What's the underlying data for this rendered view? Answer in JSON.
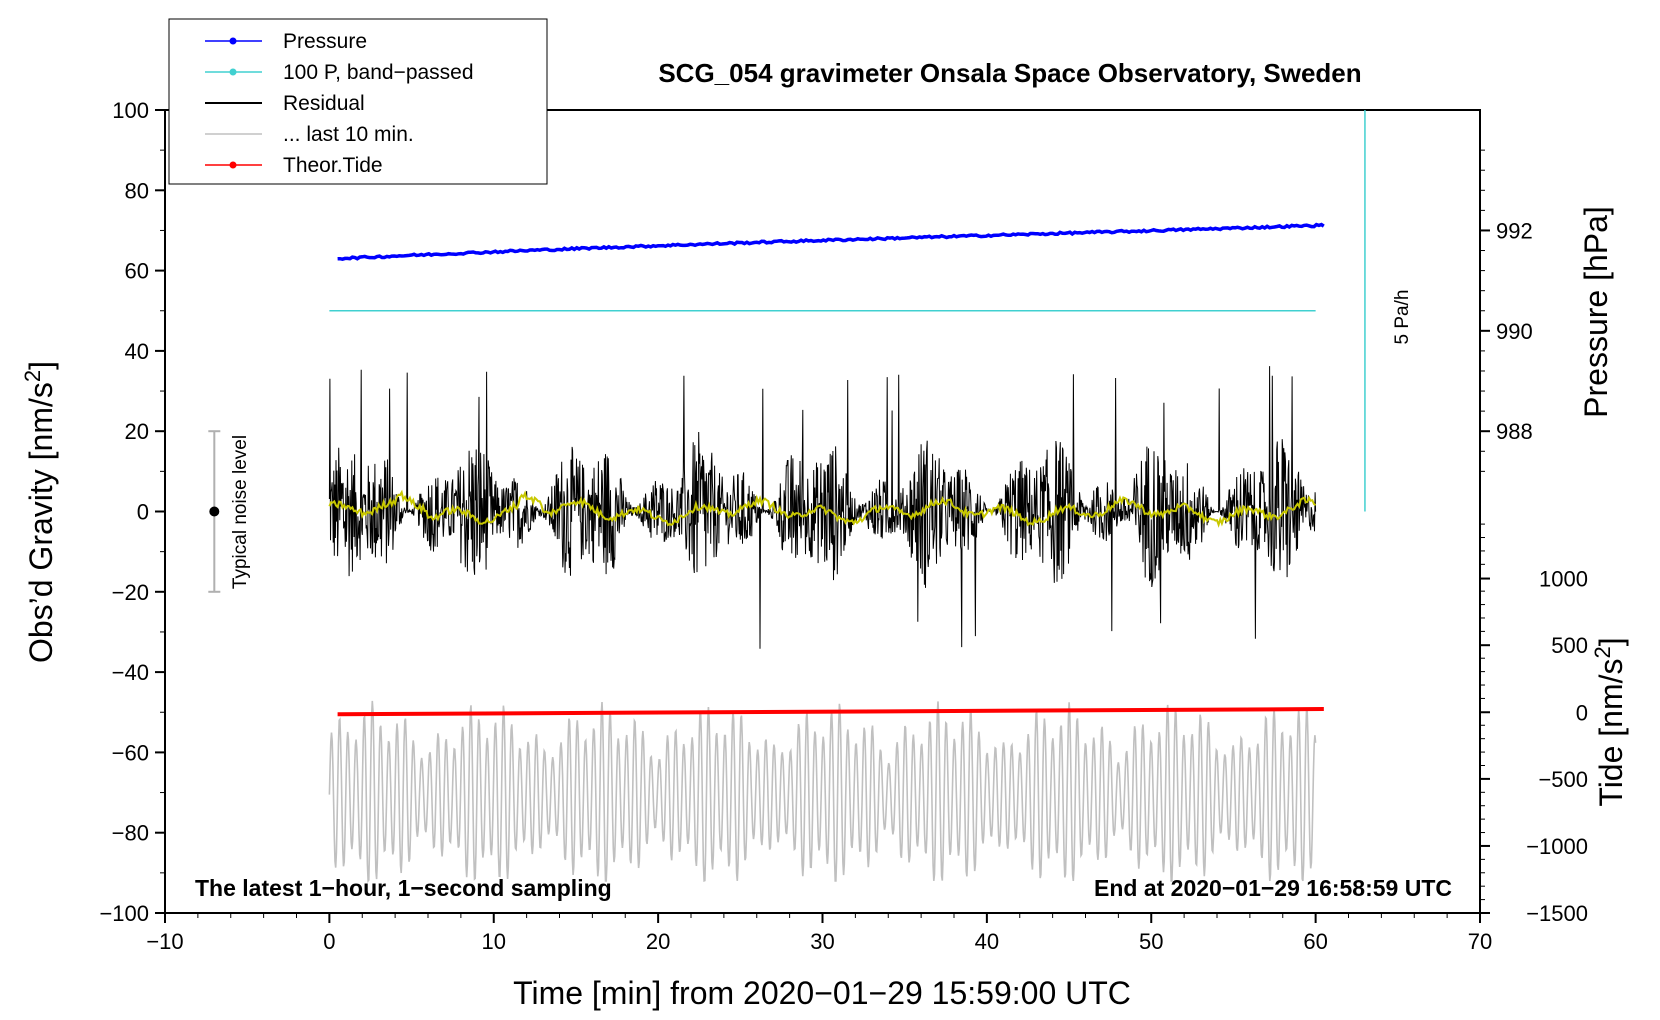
{
  "chart_data": {
    "type": "line",
    "title": "SCG_054 gravimeter Onsala Space Observatory, Sweden",
    "xlabel": "Time [min] from 2020−01−29 15:59:00 UTC",
    "ylabel_main": "Obs’d Gravity [nm/s",
    "ylabel_main_sup": "2",
    "ylabel_main_end": "]",
    "ylabel_pressure": "Pressure [hPa]",
    "ylabel_tide": "Tide [nm/s",
    "ylabel_tide_sup": "2",
    "ylabel_tide_end": "]",
    "xlim": [
      -10,
      70
    ],
    "ylim": [
      -100,
      100
    ],
    "x_ticks": [
      -10,
      0,
      10,
      20,
      30,
      40,
      50,
      60,
      70
    ],
    "x_tick_labels": [
      "−10",
      "0",
      "10",
      "20",
      "30",
      "40",
      "50",
      "60",
      "70"
    ],
    "y_ticks": [
      -100,
      -80,
      -60,
      -40,
      -20,
      0,
      20,
      40,
      60,
      80,
      100
    ],
    "y_tick_labels": [
      "−100",
      "−80",
      "−60",
      "−40",
      "−20",
      "0",
      "20",
      "40",
      "60",
      "80",
      "100"
    ],
    "pressure_axis": {
      "ticks": [
        988,
        990,
        992
      ],
      "tick_labels": [
        "988",
        "990",
        "992"
      ],
      "gravity_equiv": [
        20,
        45,
        70
      ]
    },
    "tide_axis": {
      "ticks": [
        -1500,
        -1000,
        -500,
        0,
        500,
        1000
      ],
      "tick_labels": [
        "−1500",
        "−1000",
        "−500",
        "0",
        "500",
        "1000"
      ],
      "gravity_equiv": [
        -100,
        -83.3,
        -66.6,
        -50,
        -33.3,
        -16.7
      ]
    },
    "series": [
      {
        "name": "Pressure",
        "color": "#0000ff",
        "marker": true,
        "x_range": [
          0.5,
          60.5
        ],
        "y_start": 63,
        "y_end": 71.3
      },
      {
        "name": "100 P, band−passed",
        "color": "#40d0d0",
        "marker": true,
        "x_range": [
          0,
          60
        ],
        "y_start": 50,
        "y_end": 50
      },
      {
        "name": "Residual",
        "color": "#000000",
        "marker": false,
        "x_range": [
          0,
          60
        ],
        "y_min": -35,
        "y_max": 40
      },
      {
        "name": "... last 10 min.",
        "color": "#c0c0c0",
        "marker": false,
        "x_range": [
          0,
          60
        ],
        "y_min": -92,
        "y_max": -45
      },
      {
        "name": "Theor.Tide",
        "color": "#ff0000",
        "marker": true,
        "x_range": [
          0.5,
          60.5
        ],
        "y_start": -50.5,
        "y_end": -49.2
      }
    ],
    "smoothed_residual_color": "#c8c800",
    "legend_position": "top-left, outside",
    "noise_bar": {
      "x": -7,
      "y_center": 0,
      "y_low": -20,
      "y_high": 20,
      "label": "Typical noise level"
    },
    "rate_bar": {
      "x": 63,
      "y_low": 0,
      "y_high": 100,
      "label": "5 Pa/h",
      "color": "#40d0d0"
    },
    "annotation_left": "The latest 1−hour, 1−second sampling",
    "annotation_right": "End at 2020−01−29 16:58:59 UTC"
  }
}
